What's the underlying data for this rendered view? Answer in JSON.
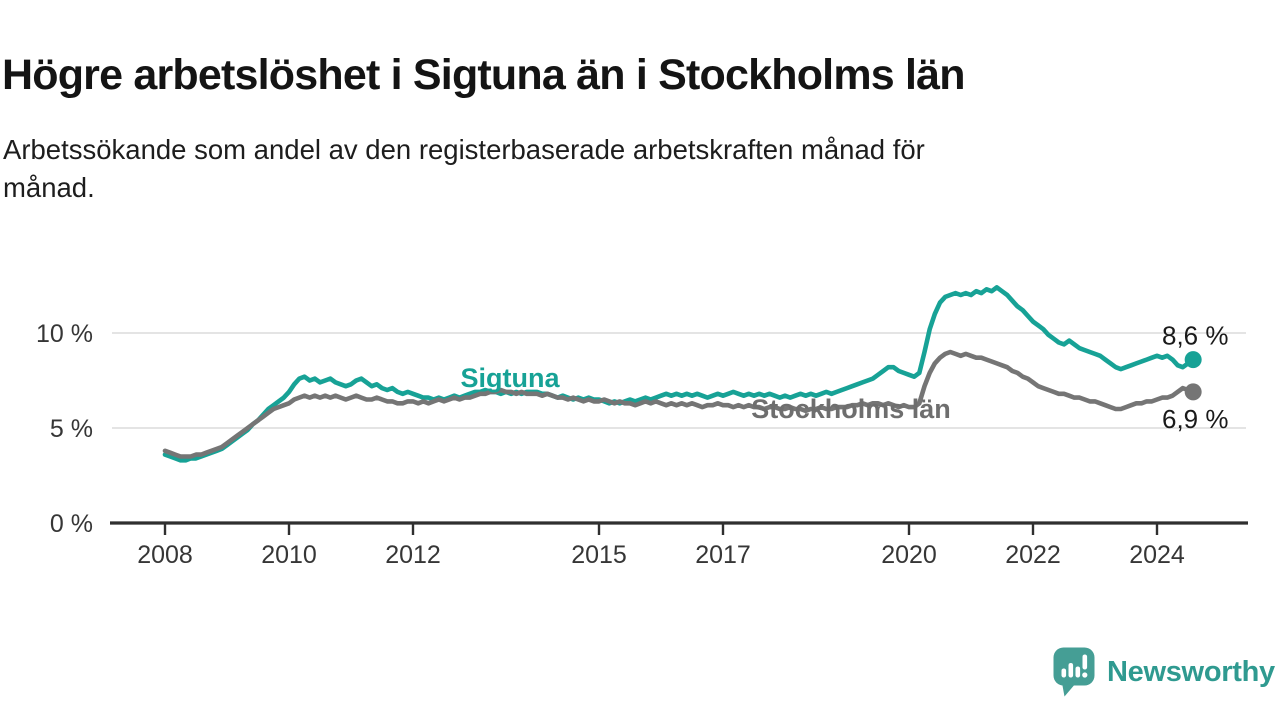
{
  "header": {
    "title": "Högre arbetslöshet i Sigtuna än i Stockholms län",
    "subtitle_lines": [
      "Arbetssökande som andel av den registerbaserade arbetskraften månad för",
      "månad."
    ]
  },
  "footer": {
    "brand": "Newsworthy",
    "brand_text_color": "#2f9a90",
    "brand_icon_color": "#459e95"
  },
  "chart_data": {
    "type": "line",
    "title": "Högre arbetslöshet i Sigtuna än i Stockholms län",
    "subtitle": "Arbetssökande som andel av den registerbaserade arbetskraften månad för månad.",
    "x_unit": "month",
    "x_start_year": 2008,
    "x_end_label": "2024-08",
    "x_ticks": [
      2008,
      2010,
      2012,
      2015,
      2017,
      2020,
      2022,
      2024
    ],
    "y_ticks": [
      {
        "value": 0,
        "label": "0 %"
      },
      {
        "value": 5,
        "label": "5 %"
      },
      {
        "value": 10,
        "label": "10 %"
      }
    ],
    "ylim": [
      0,
      13.8
    ],
    "grid": "horizontal",
    "axis_color": "#2f2f2f",
    "grid_color": "#dcdcdc",
    "tick_text_color": "#363636",
    "end_label_color": "#1a1a1a",
    "series": [
      {
        "name": "Sigtuna",
        "color": "#17a296",
        "label_color": "#17a296",
        "end_label": "8,6 %",
        "end_value": 8.6,
        "values": [
          3.6,
          3.5,
          3.4,
          3.3,
          3.3,
          3.4,
          3.4,
          3.5,
          3.6,
          3.7,
          3.8,
          3.9,
          4.1,
          4.3,
          4.5,
          4.7,
          4.9,
          5.2,
          5.4,
          5.7,
          6.0,
          6.2,
          6.4,
          6.6,
          6.9,
          7.3,
          7.6,
          7.7,
          7.5,
          7.6,
          7.4,
          7.5,
          7.6,
          7.4,
          7.3,
          7.2,
          7.3,
          7.5,
          7.6,
          7.4,
          7.2,
          7.3,
          7.1,
          7.0,
          7.1,
          6.9,
          6.8,
          6.9,
          6.8,
          6.7,
          6.6,
          6.6,
          6.5,
          6.6,
          6.5,
          6.6,
          6.7,
          6.6,
          6.7,
          6.8,
          6.9,
          6.9,
          7.0,
          6.9,
          6.9,
          6.8,
          6.9,
          6.8,
          6.9,
          6.8,
          6.9,
          6.9,
          6.9,
          6.8,
          6.8,
          6.7,
          6.6,
          6.7,
          6.6,
          6.5,
          6.6,
          6.5,
          6.6,
          6.5,
          6.5,
          6.4,
          6.3,
          6.4,
          6.3,
          6.4,
          6.5,
          6.4,
          6.5,
          6.6,
          6.5,
          6.6,
          6.7,
          6.8,
          6.7,
          6.8,
          6.7,
          6.8,
          6.7,
          6.8,
          6.7,
          6.6,
          6.7,
          6.8,
          6.7,
          6.8,
          6.9,
          6.8,
          6.7,
          6.8,
          6.7,
          6.8,
          6.7,
          6.8,
          6.7,
          6.6,
          6.7,
          6.6,
          6.7,
          6.8,
          6.7,
          6.8,
          6.7,
          6.8,
          6.9,
          6.8,
          6.9,
          7.0,
          7.1,
          7.2,
          7.3,
          7.4,
          7.5,
          7.6,
          7.8,
          8.0,
          8.2,
          8.2,
          8.0,
          7.9,
          7.8,
          7.7,
          7.9,
          9.0,
          10.2,
          11.0,
          11.6,
          11.9,
          12.0,
          12.1,
          12.0,
          12.1,
          12.0,
          12.2,
          12.1,
          12.3,
          12.2,
          12.4,
          12.2,
          12.0,
          11.7,
          11.4,
          11.2,
          10.9,
          10.6,
          10.4,
          10.2,
          9.9,
          9.7,
          9.5,
          9.4,
          9.6,
          9.4,
          9.2,
          9.1,
          9.0,
          8.9,
          8.8,
          8.6,
          8.4,
          8.2,
          8.1,
          8.2,
          8.3,
          8.4,
          8.5,
          8.6,
          8.7,
          8.8,
          8.7,
          8.8,
          8.6,
          8.3,
          8.2,
          8.4,
          8.6
        ]
      },
      {
        "name": "Stockholms län",
        "color": "#757575",
        "label_color": "#6e6e6e",
        "end_label": "6,9 %",
        "end_value": 6.9,
        "values": [
          3.8,
          3.7,
          3.6,
          3.5,
          3.5,
          3.5,
          3.6,
          3.6,
          3.7,
          3.8,
          3.9,
          4.0,
          4.2,
          4.4,
          4.6,
          4.8,
          5.0,
          5.2,
          5.4,
          5.6,
          5.8,
          6.0,
          6.1,
          6.2,
          6.3,
          6.5,
          6.6,
          6.7,
          6.6,
          6.7,
          6.6,
          6.7,
          6.6,
          6.7,
          6.6,
          6.5,
          6.6,
          6.7,
          6.6,
          6.5,
          6.5,
          6.6,
          6.5,
          6.4,
          6.4,
          6.3,
          6.3,
          6.4,
          6.4,
          6.3,
          6.4,
          6.3,
          6.4,
          6.5,
          6.4,
          6.5,
          6.6,
          6.5,
          6.6,
          6.6,
          6.7,
          6.8,
          6.8,
          6.9,
          6.9,
          7.0,
          6.9,
          6.9,
          6.8,
          6.9,
          6.8,
          6.8,
          6.8,
          6.7,
          6.8,
          6.7,
          6.6,
          6.6,
          6.5,
          6.6,
          6.5,
          6.4,
          6.5,
          6.4,
          6.4,
          6.5,
          6.4,
          6.3,
          6.4,
          6.3,
          6.3,
          6.2,
          6.3,
          6.4,
          6.3,
          6.4,
          6.3,
          6.2,
          6.3,
          6.2,
          6.3,
          6.2,
          6.3,
          6.2,
          6.1,
          6.2,
          6.2,
          6.3,
          6.2,
          6.2,
          6.1,
          6.2,
          6.1,
          6.2,
          6.1,
          6.1,
          6.0,
          6.1,
          6.1,
          6.0,
          6.0,
          6.1,
          6.0,
          6.0,
          5.9,
          6.0,
          6.0,
          6.1,
          6.0,
          6.0,
          6.1,
          6.1,
          6.1,
          6.2,
          6.2,
          6.3,
          6.2,
          6.3,
          6.3,
          6.2,
          6.3,
          6.2,
          6.1,
          6.2,
          6.1,
          6.1,
          6.3,
          7.2,
          7.9,
          8.4,
          8.7,
          8.9,
          9.0,
          8.9,
          8.8,
          8.9,
          8.8,
          8.7,
          8.7,
          8.6,
          8.5,
          8.4,
          8.3,
          8.2,
          8.0,
          7.9,
          7.7,
          7.6,
          7.4,
          7.2,
          7.1,
          7.0,
          6.9,
          6.8,
          6.8,
          6.7,
          6.6,
          6.6,
          6.5,
          6.4,
          6.4,
          6.3,
          6.2,
          6.1,
          6.0,
          6.0,
          6.1,
          6.2,
          6.3,
          6.3,
          6.4,
          6.4,
          6.5,
          6.6,
          6.6,
          6.7,
          6.9,
          7.1,
          7.0,
          6.9
        ]
      }
    ]
  }
}
